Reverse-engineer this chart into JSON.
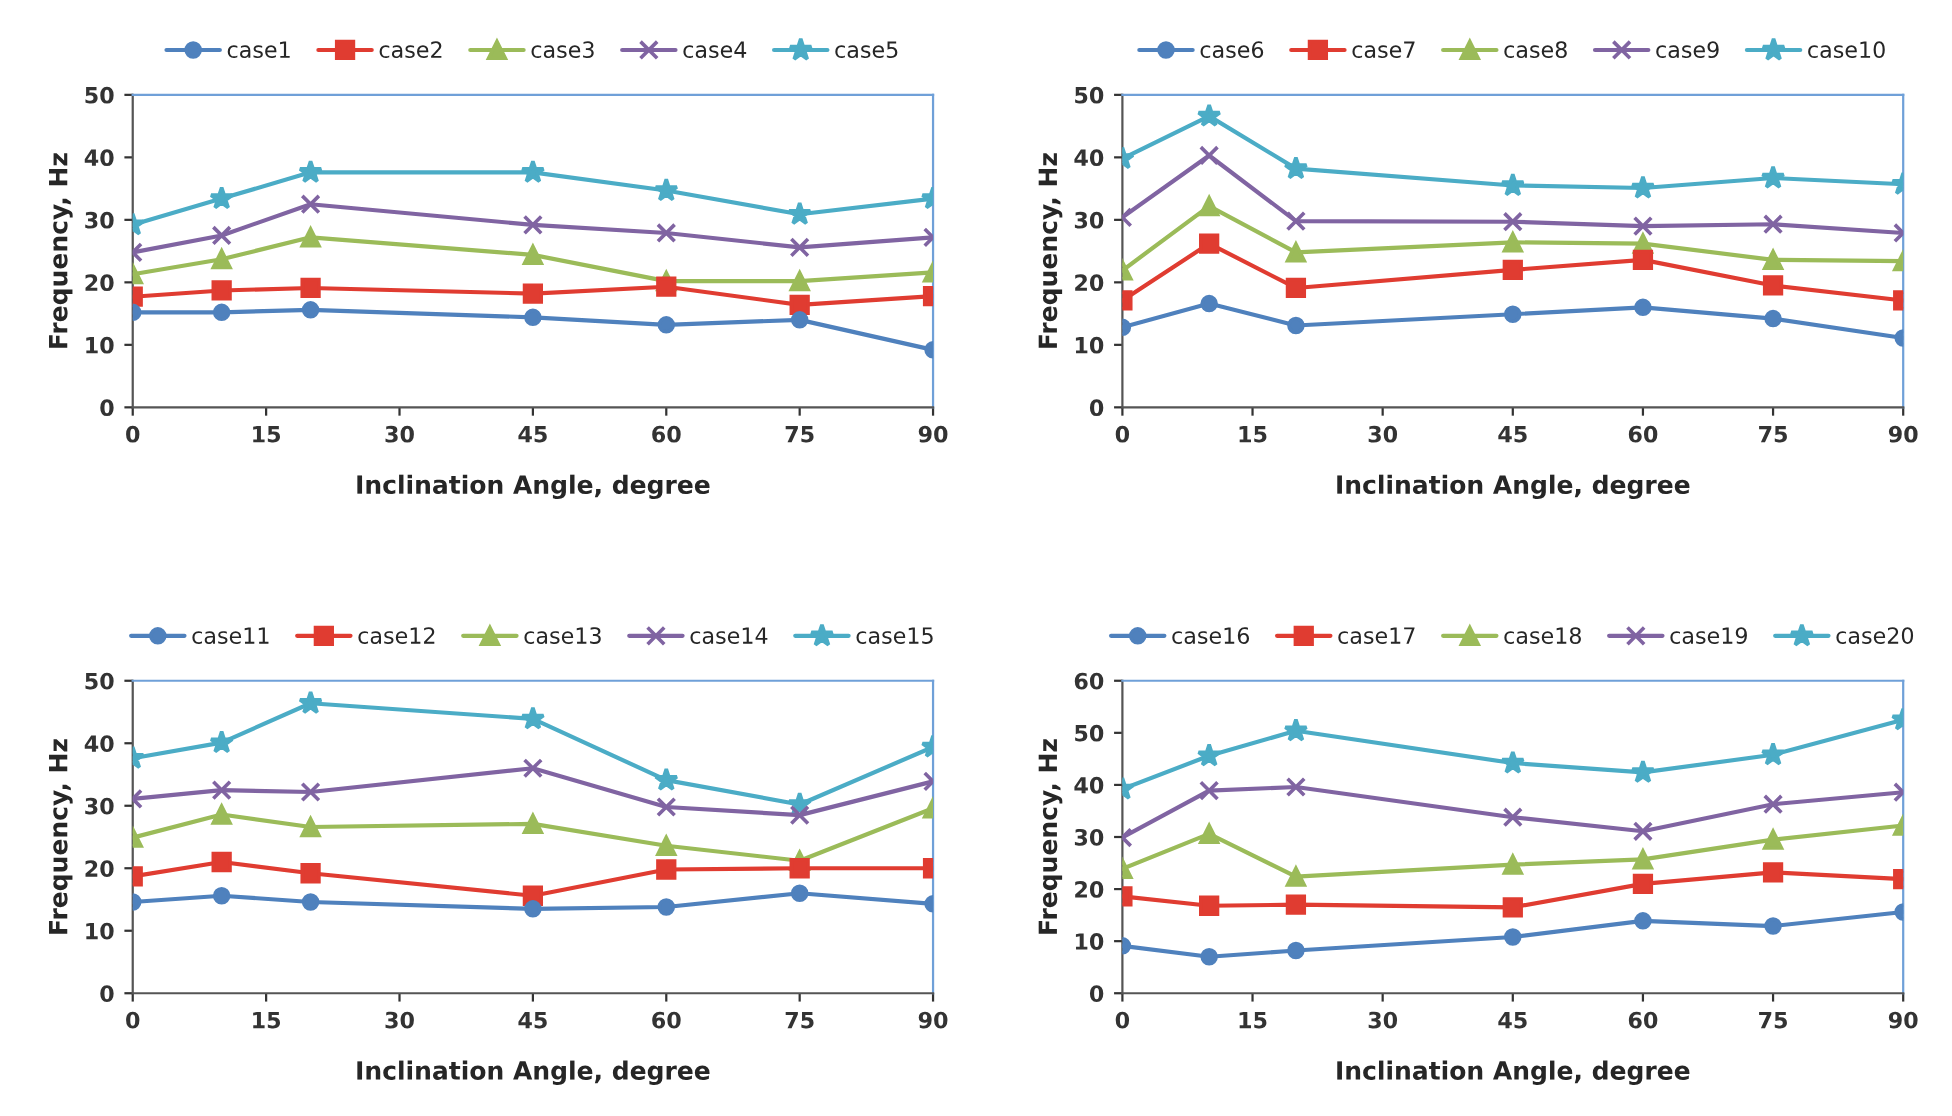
{
  "chart_data": [
    {
      "type": "line",
      "xlabel": "Inclination Angle, degree",
      "ylabel": "Frequency, Hz",
      "x": [
        0,
        10,
        20,
        45,
        60,
        75,
        90
      ],
      "xlim": [
        0,
        90
      ],
      "xticks": [
        0,
        15,
        30,
        45,
        60,
        75,
        90
      ],
      "ylim": [
        0,
        50
      ],
      "yticks": [
        0,
        10,
        20,
        30,
        40,
        50
      ],
      "grid": false,
      "legend": "top",
      "series": [
        {
          "name": "case1",
          "color": "#4f81bd",
          "marker": "circle",
          "values": [
            15.2,
            15.2,
            15.6,
            14.4,
            13.2,
            14.0,
            9.2
          ]
        },
        {
          "name": "case2",
          "color": "#e03c31",
          "marker": "square",
          "values": [
            17.7,
            18.7,
            19.1,
            18.2,
            19.3,
            16.4,
            17.8
          ]
        },
        {
          "name": "case3",
          "color": "#9bbb59",
          "marker": "triangle",
          "values": [
            21.3,
            23.7,
            27.2,
            24.4,
            20.2,
            20.2,
            21.6
          ]
        },
        {
          "name": "case4",
          "color": "#8064a2",
          "marker": "cross",
          "values": [
            24.8,
            27.5,
            32.5,
            29.2,
            27.9,
            25.6,
            27.2
          ]
        },
        {
          "name": "case5",
          "color": "#4bacc6",
          "marker": "star",
          "values": [
            29.2,
            33.4,
            37.6,
            37.6,
            34.7,
            30.9,
            33.4
          ]
        }
      ]
    },
    {
      "type": "line",
      "xlabel": "Inclination Angle, degree",
      "ylabel": "Frequency, Hz",
      "x": [
        0,
        10,
        20,
        45,
        60,
        75,
        90
      ],
      "xlim": [
        0,
        90
      ],
      "xticks": [
        0,
        15,
        30,
        45,
        60,
        75,
        90
      ],
      "ylim": [
        0,
        50
      ],
      "yticks": [
        0,
        10,
        20,
        30,
        40,
        50
      ],
      "grid": false,
      "legend": "top",
      "series": [
        {
          "name": "case6",
          "color": "#4f81bd",
          "marker": "circle",
          "values": [
            12.8,
            16.6,
            13.1,
            14.9,
            16.0,
            14.2,
            11.1
          ]
        },
        {
          "name": "case7",
          "color": "#e03c31",
          "marker": "square",
          "values": [
            17.1,
            26.2,
            19.1,
            22.0,
            23.6,
            19.5,
            17.1
          ]
        },
        {
          "name": "case8",
          "color": "#9bbb59",
          "marker": "triangle",
          "values": [
            21.9,
            32.2,
            24.8,
            26.4,
            26.2,
            23.6,
            23.4
          ]
        },
        {
          "name": "case9",
          "color": "#8064a2",
          "marker": "cross",
          "values": [
            30.4,
            40.3,
            29.8,
            29.7,
            29.0,
            29.3,
            27.9
          ]
        },
        {
          "name": "case10",
          "color": "#4bacc6",
          "marker": "star",
          "values": [
            39.8,
            46.6,
            38.2,
            35.5,
            35.1,
            36.7,
            35.7
          ]
        }
      ]
    },
    {
      "type": "line",
      "xlabel": "Inclination Angle, degree",
      "ylabel": "Frequency, Hz",
      "x": [
        0,
        10,
        20,
        45,
        60,
        75,
        90
      ],
      "xlim": [
        0,
        90
      ],
      "xticks": [
        0,
        15,
        30,
        45,
        60,
        75,
        90
      ],
      "ylim": [
        0,
        50
      ],
      "yticks": [
        0,
        10,
        20,
        30,
        40,
        50
      ],
      "grid": false,
      "legend": "top",
      "series": [
        {
          "name": "case11",
          "color": "#4f81bd",
          "marker": "circle",
          "values": [
            14.6,
            15.6,
            14.6,
            13.5,
            13.8,
            16.0,
            14.3
          ]
        },
        {
          "name": "case12",
          "color": "#e03c31",
          "marker": "square",
          "values": [
            18.7,
            21.0,
            19.2,
            15.6,
            19.8,
            20.0,
            20.0
          ]
        },
        {
          "name": "case13",
          "color": "#9bbb59",
          "marker": "triangle",
          "values": [
            24.9,
            28.6,
            26.6,
            27.1,
            23.6,
            21.2,
            29.6
          ]
        },
        {
          "name": "case14",
          "color": "#8064a2",
          "marker": "cross",
          "values": [
            31.1,
            32.5,
            32.2,
            36.0,
            29.8,
            28.5,
            33.9
          ]
        },
        {
          "name": "case15",
          "color": "#4bacc6",
          "marker": "star",
          "values": [
            37.6,
            40.1,
            46.4,
            43.9,
            34.1,
            30.2,
            39.4
          ]
        }
      ]
    },
    {
      "type": "line",
      "xlabel": "Inclination Angle, degree",
      "ylabel": "Frequency, Hz",
      "x": [
        0,
        10,
        20,
        45,
        60,
        75,
        90
      ],
      "xlim": [
        0,
        90
      ],
      "xticks": [
        0,
        15,
        30,
        45,
        60,
        75,
        90
      ],
      "ylim": [
        0,
        60
      ],
      "yticks": [
        0,
        10,
        20,
        30,
        40,
        50,
        60
      ],
      "grid": false,
      "legend": "top",
      "series": [
        {
          "name": "case16",
          "color": "#4f81bd",
          "marker": "circle",
          "values": [
            9.1,
            7.0,
            8.2,
            10.8,
            13.9,
            12.9,
            15.6
          ]
        },
        {
          "name": "case17",
          "color": "#e03c31",
          "marker": "square",
          "values": [
            18.6,
            16.8,
            17.0,
            16.5,
            21.0,
            23.2,
            21.9
          ]
        },
        {
          "name": "case18",
          "color": "#9bbb59",
          "marker": "triangle",
          "values": [
            23.9,
            30.6,
            22.4,
            24.7,
            25.7,
            29.5,
            32.2
          ]
        },
        {
          "name": "case19",
          "color": "#8064a2",
          "marker": "cross",
          "values": [
            29.9,
            38.9,
            39.6,
            33.8,
            31.1,
            36.3,
            38.6
          ]
        },
        {
          "name": "case20",
          "color": "#4bacc6",
          "marker": "star",
          "values": [
            39.2,
            45.6,
            50.4,
            44.2,
            42.4,
            45.8,
            52.5
          ]
        }
      ]
    }
  ]
}
